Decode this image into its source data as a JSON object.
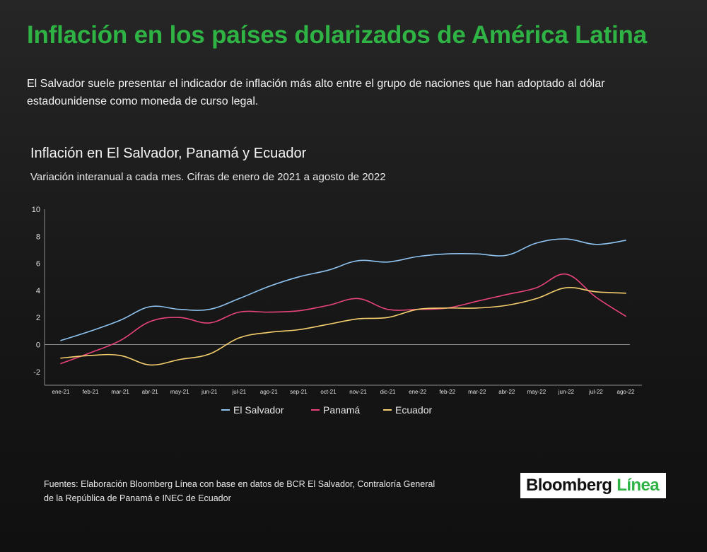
{
  "header": {
    "title": "Inflación en los países dolarizados de América Latina",
    "subtitle": "El Salvador suele presentar el indicador de inflación más alto  entre el grupo de naciones que han adoptado al dólar estadounidense como moneda de curso legal."
  },
  "footer": {
    "source": "Fuentes: Elaboración Bloomberg Línea con base en datos de BCR El Salvador, Contraloría General de la República de Panamá e INEC de Ecuador",
    "logo_word1": "Bloomberg",
    "logo_word2": "Línea"
  },
  "chart_data": {
    "type": "line",
    "title": "Inflación en El Salvador, Panamá y Ecuador",
    "subtitle": "Variación interanual a cada mes. Cifras de enero de 2021 a agosto de 2022",
    "xlabel": "",
    "ylabel": "",
    "ylim": [
      -3,
      10
    ],
    "yticks": [
      10,
      8,
      6,
      4,
      2,
      0,
      -2
    ],
    "grid": false,
    "legend_position": "bottom",
    "categories": [
      "ene-21",
      "feb-21",
      "mar-21",
      "abr-21",
      "may-21",
      "jun-21",
      "jul-21",
      "ago-21",
      "sep-21",
      "oct-21",
      "nov-21",
      "dic-21",
      "ene-22",
      "feb-22",
      "mar-22",
      "abr-22",
      "may-22",
      "jun-22",
      "jul-22",
      "ago-22"
    ],
    "series": [
      {
        "name": "El Salvador",
        "color": "#8ec3f0",
        "values": [
          0.3,
          1.0,
          1.8,
          2.8,
          2.6,
          2.6,
          3.4,
          4.3,
          5.0,
          5.5,
          6.2,
          6.1,
          6.5,
          6.7,
          6.7,
          6.6,
          7.5,
          7.8,
          7.4,
          7.7
        ]
      },
      {
        "name": "Panamá",
        "color": "#e8437a",
        "values": [
          -1.4,
          -0.6,
          0.3,
          1.7,
          2.0,
          1.6,
          2.4,
          2.4,
          2.5,
          2.9,
          3.4,
          2.6,
          2.6,
          2.7,
          3.2,
          3.7,
          4.2,
          5.2,
          3.5,
          2.1
        ]
      },
      {
        "name": "Ecuador",
        "color": "#f5cf6e",
        "values": [
          -1.0,
          -0.8,
          -0.8,
          -1.5,
          -1.1,
          -0.7,
          0.5,
          0.9,
          1.1,
          1.5,
          1.9,
          2.0,
          2.6,
          2.7,
          2.7,
          2.9,
          3.4,
          4.2,
          3.9,
          3.8
        ]
      }
    ]
  }
}
